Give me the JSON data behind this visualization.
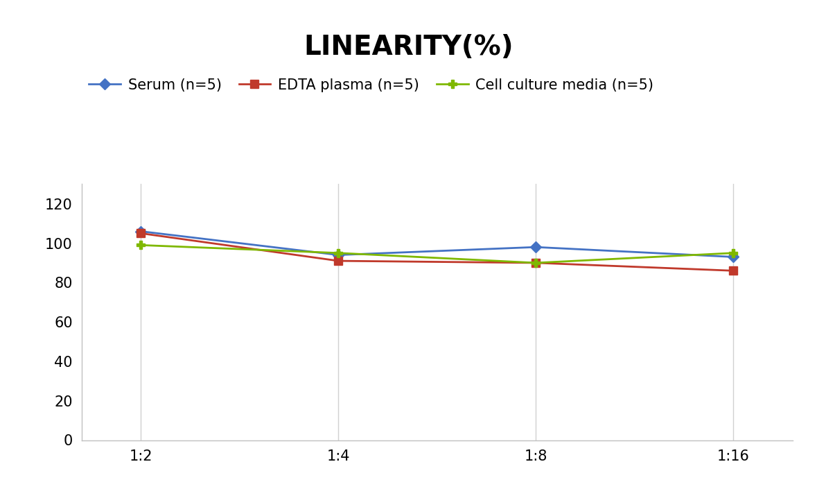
{
  "title": "LINEARITY(%)",
  "title_fontsize": 28,
  "title_fontweight": "bold",
  "x_labels": [
    "1:2",
    "1:4",
    "1:8",
    "1:16"
  ],
  "x_positions": [
    0,
    1,
    2,
    3
  ],
  "series": [
    {
      "label": "Serum (n=5)",
      "values": [
        106,
        94,
        98,
        93
      ],
      "color": "#4472C4",
      "marker": "D",
      "markersize": 8,
      "linewidth": 2
    },
    {
      "label": "EDTA plasma (n=5)",
      "values": [
        105,
        91,
        90,
        86
      ],
      "color": "#C0392B",
      "marker": "s",
      "markersize": 8,
      "linewidth": 2
    },
    {
      "label": "Cell culture media (n=5)",
      "values": [
        99,
        95,
        90,
        95
      ],
      "color": "#7FB800",
      "marker": "P",
      "markersize": 9,
      "linewidth": 2
    }
  ],
  "ylim": [
    0,
    130
  ],
  "yticks": [
    0,
    20,
    40,
    60,
    80,
    100,
    120
  ],
  "background_color": "#ffffff",
  "grid_color": "#d0d0d0",
  "legend_fontsize": 15,
  "tick_fontsize": 15
}
